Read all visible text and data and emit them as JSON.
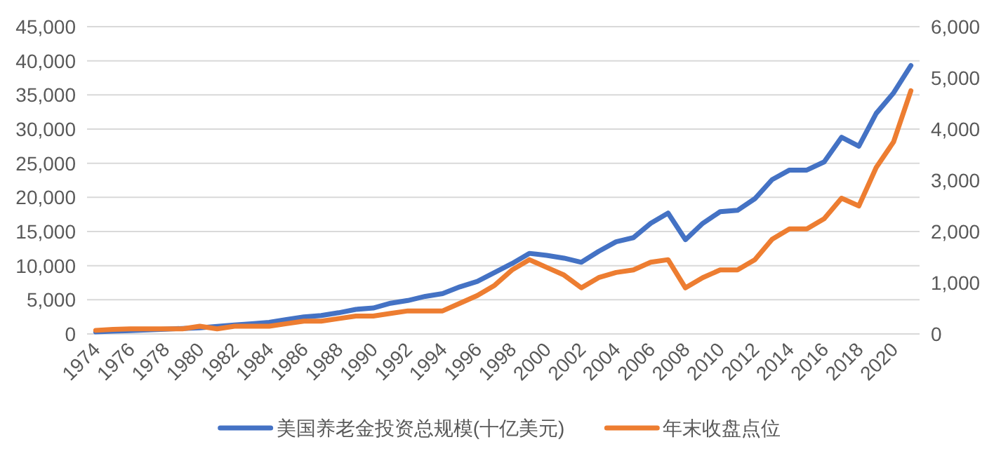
{
  "chart_data": {
    "type": "line",
    "categories": [
      "1974",
      null,
      "1976",
      null,
      "1978",
      null,
      "1980",
      null,
      "1982",
      null,
      "1984",
      null,
      "1986",
      null,
      "1988",
      null,
      "1990",
      null,
      "1992",
      null,
      "1994",
      null,
      "1996",
      null,
      "1998",
      null,
      "2000",
      null,
      "2002",
      null,
      "2004",
      null,
      "2006",
      null,
      "2008",
      null,
      "2010",
      null,
      "2012",
      null,
      "2014",
      null,
      "2016",
      null,
      "2018",
      null,
      "2020",
      null
    ],
    "series": [
      {
        "name": "美国养老金投资总规模(十亿美元)",
        "color": "#4472c4",
        "values": [
          300,
          400,
          500,
          600,
          700,
          800,
          900,
          1100,
          1300,
          1500,
          1700,
          2100,
          2500,
          2700,
          3100,
          3600,
          3800,
          4500,
          4900,
          5500,
          5900,
          6900,
          7700,
          9000,
          10300,
          11800,
          11500,
          11100,
          10500,
          12100,
          13500,
          14100,
          16200,
          17700,
          13800,
          16200,
          17900,
          18100,
          19800,
          22600,
          24000,
          24000,
          25200,
          28800,
          27500,
          32300,
          35300,
          39300
        ]
      },
      {
        "name": "年末收盘点位",
        "color": "#ed7d31",
        "axis": "y2",
        "values": [
          70,
          90,
          100,
          100,
          100,
          100,
          150,
          100,
          150,
          150,
          150,
          200,
          250,
          250,
          300,
          350,
          350,
          400,
          450,
          450,
          450,
          600,
          750,
          950,
          1250,
          1450,
          1300,
          1150,
          900,
          1100,
          1200,
          1250,
          1400,
          1450,
          900,
          1100,
          1250,
          1250,
          1450,
          1850,
          2050,
          2050,
          2250,
          2650,
          2500,
          3250,
          3750,
          4750
        ]
      }
    ],
    "ylim": [
      0,
      45000
    ],
    "yticks": [
      {
        "value": 0,
        "label": "0"
      },
      {
        "value": 5000,
        "label": "5,000"
      },
      {
        "value": 10000,
        "label": "10,000"
      },
      {
        "value": 15000,
        "label": "15,000"
      },
      {
        "value": 20000,
        "label": "20,000"
      },
      {
        "value": 25000,
        "label": "25,000"
      },
      {
        "value": 30000,
        "label": "30,000"
      },
      {
        "value": 35000,
        "label": "35,000"
      },
      {
        "value": 40000,
        "label": "40,000"
      },
      {
        "value": 45000,
        "label": "45,000"
      }
    ],
    "y2lim": [
      0,
      6000
    ],
    "y2ticks": [
      {
        "value": 0,
        "label": "0"
      },
      {
        "value": 1000,
        "label": "1,000"
      },
      {
        "value": 2000,
        "label": "2,000"
      },
      {
        "value": 3000,
        "label": "3,000"
      },
      {
        "value": 4000,
        "label": "4,000"
      },
      {
        "value": 5000,
        "label": "5,000"
      },
      {
        "value": 6000,
        "label": "6,000"
      }
    ],
    "grid": "y",
    "legend": "bottom",
    "marker": "none",
    "line_style": "solid"
  }
}
